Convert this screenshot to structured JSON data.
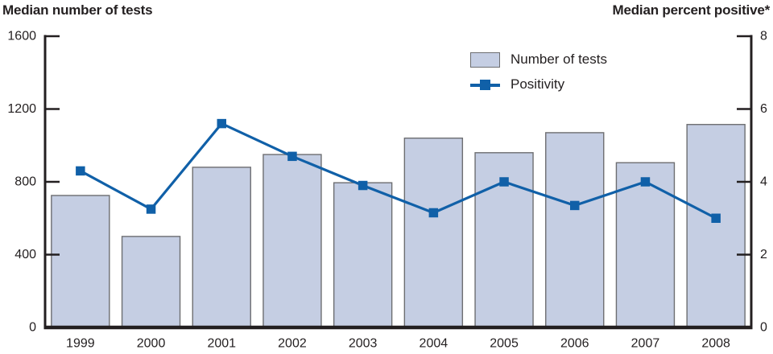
{
  "titles": {
    "left": "Median number of tests",
    "right": "Median percent positive*"
  },
  "legend": {
    "bar_label": "Number of tests",
    "line_label": "Positivity"
  },
  "colors": {
    "bar_fill": "#c5cee3",
    "bar_border": "#6d6e71",
    "line": "#1060a8",
    "axis": "#231f20",
    "text": "#231f20"
  },
  "chart_data": {
    "type": "bar+line",
    "description": "Combination chart with bars on left axis and line with square markers on right axis",
    "categories": [
      "1999",
      "2000",
      "2001",
      "2002",
      "2003",
      "2004",
      "2005",
      "2006",
      "2007",
      "2008"
    ],
    "series": [
      {
        "name": "Number of tests",
        "type": "bar",
        "axis": "left",
        "values": [
          725,
          500,
          880,
          950,
          795,
          1040,
          960,
          1070,
          905,
          1115
        ]
      },
      {
        "name": "Positivity",
        "type": "line",
        "axis": "right",
        "values": [
          4.3,
          3.25,
          5.6,
          4.7,
          3.9,
          3.15,
          4.0,
          3.35,
          4.0,
          3.0
        ]
      }
    ],
    "left_axis": {
      "title": "Median number of tests",
      "min": 0,
      "max": 1600,
      "ticks": [
        0,
        400,
        800,
        1200,
        1600
      ]
    },
    "right_axis": {
      "title": "Median percent positive*",
      "min": 0,
      "max": 8,
      "ticks": [
        0,
        2,
        4,
        6,
        8
      ]
    },
    "grid": false,
    "legend_position": "top-center-right inside plot"
  }
}
